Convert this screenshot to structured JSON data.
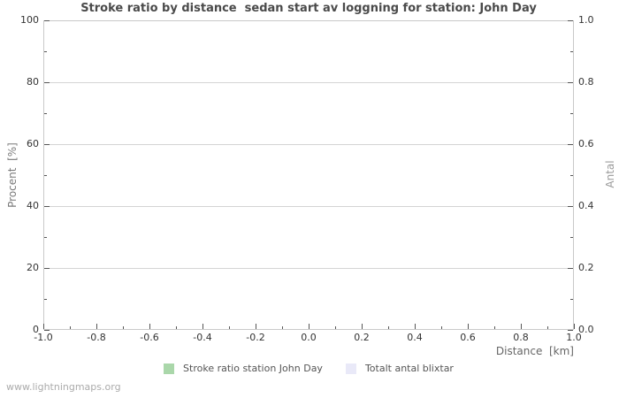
{
  "watermark": "www.lightningmaps.org",
  "chart_data": {
    "type": "line",
    "title": "Stroke ratio by distance  sedan start av loggning for station: John Day",
    "x": {
      "label": "Distance  [km]",
      "range": [
        -1.0,
        1.0
      ],
      "ticks": [
        "-1.0",
        "-0.8",
        "-0.6",
        "-0.4",
        "-0.2",
        "0.0",
        "0.2",
        "0.4",
        "0.6",
        "0.8",
        "1.0"
      ],
      "minor_step": 0.1
    },
    "y_left": {
      "label": "Procent  [%]",
      "range": [
        0,
        100
      ],
      "ticks": [
        "0",
        "20",
        "40",
        "60",
        "80",
        "100"
      ],
      "minor_step": 10
    },
    "y_right": {
      "label": "Antal",
      "range": [
        0.0,
        1.0
      ],
      "ticks": [
        "0.0",
        "0.2",
        "0.4",
        "0.6",
        "0.8",
        "1.0"
      ],
      "minor_step": 0.1
    },
    "grid": "horizontal-major-only",
    "legend_position": "bottom-center",
    "series": [
      {
        "name": "Stroke ratio station John Day",
        "color": "#aad7aa",
        "values": []
      },
      {
        "name": "Totalt antal blixtar",
        "color": "#e9e9f8",
        "values": []
      }
    ]
  }
}
